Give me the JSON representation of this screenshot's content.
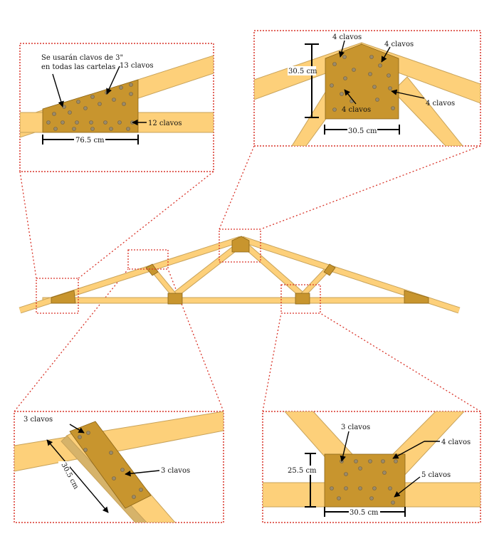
{
  "colors": {
    "wood": "#fdd07a",
    "plate": "#c8952e",
    "frame_dotted": "#d9352a"
  },
  "panels": {
    "top_left": {
      "note": "Se usarán clavos de 3\"\nen todas las cartelas",
      "top_nails": "13 clavos",
      "bottom_nails": "12 clavos",
      "width": "76.5 cm"
    },
    "top_right": {
      "left_nails": "4 clavos",
      "right_nails": "4 clavos",
      "bottom_nails": "4 clavos",
      "side_nails": "4 clavos",
      "height": "30.5 cm",
      "width": "30.5 cm"
    },
    "bottom_left": {
      "top_nails": "3 clavos",
      "side_nails": "3 clavos",
      "length": "30.5 cm"
    },
    "bottom_right": {
      "left_nails": "3 clavos",
      "right_nails": "4 clavos",
      "low_nails": "5 clavos",
      "height": "25.5 cm",
      "width": "30.5 cm"
    }
  }
}
